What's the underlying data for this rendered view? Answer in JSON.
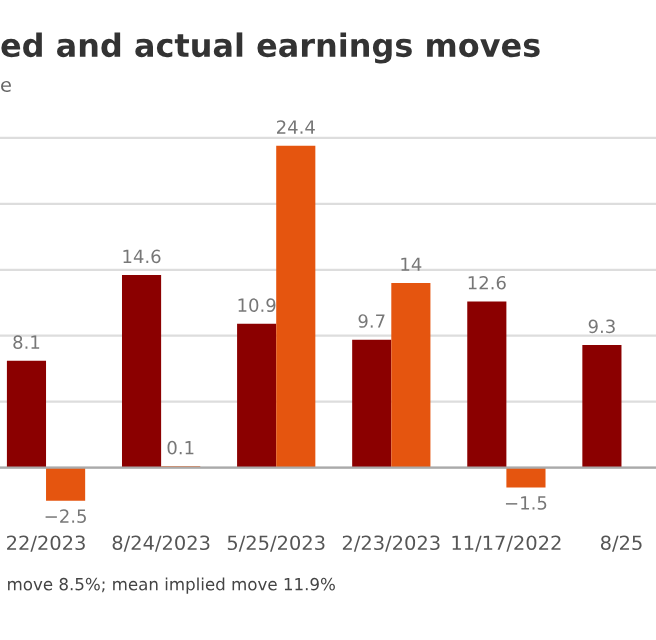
{
  "chart_data": {
    "type": "bar",
    "title": "ed and actual earnings moves",
    "subtitle": "e",
    "categories": [
      "22/2023",
      "8/24/2023",
      "5/25/2023",
      "2/23/2023",
      "11/17/2022",
      "8/25"
    ],
    "series": [
      {
        "color": "#8b0000",
        "values": [
          8.1,
          14.6,
          10.9,
          9.7,
          12.6,
          9.3
        ],
        "value_labels": [
          "8.1",
          "14.6",
          "10.9",
          "9.7",
          "12.6",
          "9.3"
        ]
      },
      {
        "color": "#e5550f",
        "values": [
          -2.5,
          0.1,
          24.4,
          14,
          -1.5,
          null
        ],
        "value_labels": [
          "−2.5",
          "0.1",
          "24.4",
          "14",
          "−1.5",
          null
        ]
      }
    ],
    "tick_labels": "x",
    "grid": "y",
    "annotations": [
      "move 8.5%; mean implied move 11.9%"
    ]
  }
}
